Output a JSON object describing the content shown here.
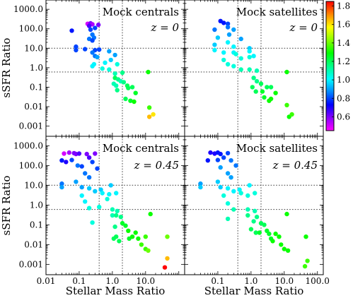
{
  "colors": {
    "colormap": [
      "#ff00ff",
      "#8800ff",
      "#0000ff",
      "#0088ff",
      "#00ffff",
      "#00ff88",
      "#00ff00",
      "#88ff00",
      "#ffff00",
      "#ff8800",
      "#ff0000"
    ],
    "frame": "#000000",
    "guide_lines": "#555555"
  },
  "chart_data": {
    "type": "scatter",
    "xlabel": "Stellar Mass Ratio",
    "ylabel": "sSFR Ratio",
    "x_scale": "log",
    "y_scale": "log",
    "xlim": [
      0.01,
      150
    ],
    "ylim": [
      0.0003,
      3000
    ],
    "x_ticks": [
      "0.01",
      "0.1",
      "1.0",
      "10.0",
      "100.0"
    ],
    "y_ticks": [
      "0.001",
      "0.01",
      "0.1",
      "1.0",
      "10.0",
      "100.0",
      "1000.0"
    ],
    "reference_lines": {
      "x": [
        0.4,
        2.0
      ],
      "y": [
        0.6,
        10.0
      ]
    },
    "colorbar": {
      "range": [
        0.45,
        1.85
      ],
      "ticks": [
        "0.6",
        "0.8",
        "1.0",
        "1.2",
        "1.4",
        "1.6",
        "1.8"
      ]
    },
    "panels": [
      {
        "title": "Mock centrals",
        "redshift": "z = 0",
        "points": [
          [
            0.18,
            180,
            0.5
          ],
          [
            0.22,
            190,
            0.6
          ],
          [
            0.25,
            170,
            0.55
          ],
          [
            0.2,
            140,
            0.65
          ],
          [
            0.38,
            160,
            0.6
          ],
          [
            0.06,
            80,
            0.75
          ],
          [
            0.22,
            90,
            0.8
          ],
          [
            0.3,
            110,
            0.8
          ],
          [
            0.25,
            50,
            0.85
          ],
          [
            0.2,
            30,
            0.85
          ],
          [
            0.28,
            35,
            0.85
          ],
          [
            0.25,
            25,
            0.8
          ],
          [
            0.08,
            12,
            0.8
          ],
          [
            0.08,
            8,
            0.8
          ],
          [
            0.15,
            9,
            0.8
          ],
          [
            0.3,
            8,
            0.8
          ],
          [
            0.4,
            8.5,
            0.8
          ],
          [
            0.25,
            6,
            0.85
          ],
          [
            0.3,
            4,
            0.85
          ],
          [
            0.35,
            3.5,
            0.9
          ],
          [
            0.8,
            7,
            0.9
          ],
          [
            1.2,
            4.5,
            0.9
          ],
          [
            0.9,
            2.5,
            0.95
          ],
          [
            0.28,
            1.5,
            1.0
          ],
          [
            0.25,
            1.2,
            1.0
          ],
          [
            0.6,
            1.8,
            1.0
          ],
          [
            0.5,
            0.9,
            1.05
          ],
          [
            0.8,
            0.8,
            1.05
          ],
          [
            1.4,
            1.5,
            1.05
          ],
          [
            1.2,
            0.5,
            1.1
          ],
          [
            2.0,
            0.55,
            1.15
          ],
          [
            1.2,
            0.3,
            1.2
          ],
          [
            1.5,
            0.25,
            1.15
          ],
          [
            1.8,
            0.2,
            1.1
          ],
          [
            1.1,
            0.15,
            1.1
          ],
          [
            1.3,
            0.12,
            1.1
          ],
          [
            2.2,
            0.18,
            1.15
          ],
          [
            1.4,
            0.07,
            1.15
          ],
          [
            2.8,
            0.12,
            1.2
          ],
          [
            3.0,
            0.09,
            1.2
          ],
          [
            4.0,
            0.1,
            1.2
          ],
          [
            5.0,
            0.05,
            1.25
          ],
          [
            2.5,
            0.025,
            1.2
          ],
          [
            3.5,
            0.02,
            1.25
          ],
          [
            4.5,
            0.018,
            1.3
          ],
          [
            12.0,
            0.6,
            1.3
          ],
          [
            13.0,
            0.009,
            1.35
          ],
          [
            17.0,
            0.004,
            1.6
          ],
          [
            13.0,
            0.003,
            1.65
          ]
        ]
      },
      {
        "title": "Mock satellites",
        "redshift": "z = 0",
        "points": [
          [
            0.12,
            250,
            0.75
          ],
          [
            0.15,
            200,
            0.75
          ],
          [
            0.2,
            180,
            0.8
          ],
          [
            0.2,
            120,
            0.85
          ],
          [
            0.08,
            90,
            0.85
          ],
          [
            0.22,
            50,
            0.9
          ],
          [
            0.3,
            90,
            0.9
          ],
          [
            0.1,
            35,
            0.95
          ],
          [
            0.5,
            30,
            0.9
          ],
          [
            0.08,
            15,
            0.95
          ],
          [
            0.2,
            20,
            1.0
          ],
          [
            0.3,
            12,
            1.0
          ],
          [
            0.08,
            8,
            1.0
          ],
          [
            0.15,
            6,
            1.0
          ],
          [
            0.3,
            6,
            1.0
          ],
          [
            0.35,
            5,
            1.05
          ],
          [
            0.9,
            10,
            0.95
          ],
          [
            0.9,
            7,
            1.0
          ],
          [
            1.2,
            4,
            1.0
          ],
          [
            0.5,
            3,
            1.05
          ],
          [
            0.9,
            3.5,
            1.05
          ],
          [
            0.15,
            2.5,
            1.05
          ],
          [
            0.2,
            1.5,
            1.05
          ],
          [
            0.3,
            1.2,
            1.05
          ],
          [
            0.5,
            0.8,
            1.1
          ],
          [
            0.9,
            0.8,
            1.1
          ],
          [
            1.5,
            0.7,
            1.1
          ],
          [
            1.2,
            0.3,
            1.15
          ],
          [
            1.5,
            0.2,
            1.15
          ],
          [
            2.0,
            0.15,
            1.2
          ],
          [
            1.1,
            0.1,
            1.2
          ],
          [
            3.0,
            0.1,
            1.2
          ],
          [
            1.4,
            0.06,
            1.2
          ],
          [
            2.2,
            0.06,
            1.25
          ],
          [
            4.0,
            0.1,
            1.2
          ],
          [
            2.5,
            0.03,
            1.25
          ],
          [
            3.5,
            0.02,
            1.3
          ],
          [
            4.0,
            0.025,
            1.3
          ],
          [
            5.5,
            0.05,
            1.3
          ],
          [
            12.0,
            0.6,
            1.3
          ],
          [
            12.0,
            0.012,
            1.35
          ],
          [
            14.0,
            0.003,
            1.3
          ],
          [
            17.0,
            0.004,
            1.35
          ]
        ]
      },
      {
        "title": "Mock centrals",
        "redshift": "z = 0.45",
        "points": [
          [
            0.035,
            400,
            0.5
          ],
          [
            0.05,
            450,
            0.55
          ],
          [
            0.07,
            420,
            0.6
          ],
          [
            0.08,
            380,
            0.6
          ],
          [
            0.1,
            400,
            0.65
          ],
          [
            0.17,
            380,
            0.6
          ],
          [
            0.3,
            400,
            0.6
          ],
          [
            0.2,
            250,
            0.65
          ],
          [
            0.03,
            180,
            0.75
          ],
          [
            0.04,
            150,
            0.7
          ],
          [
            0.06,
            190,
            0.8
          ],
          [
            0.09,
            100,
            0.85
          ],
          [
            0.12,
            90,
            0.8
          ],
          [
            0.25,
            150,
            0.8
          ],
          [
            0.35,
            70,
            0.8
          ],
          [
            0.15,
            40,
            0.85
          ],
          [
            0.2,
            25,
            0.85
          ],
          [
            0.03,
            12,
            0.85
          ],
          [
            0.03,
            8,
            0.9
          ],
          [
            0.08,
            15,
            0.9
          ],
          [
            0.12,
            8,
            0.9
          ],
          [
            0.2,
            7,
            0.95
          ],
          [
            0.3,
            5,
            0.95
          ],
          [
            0.45,
            6,
            0.95
          ],
          [
            0.5,
            4,
            1.0
          ],
          [
            0.12,
            3,
            1.0
          ],
          [
            0.15,
            1.5,
            1.0
          ],
          [
            0.2,
            0.7,
            1.05
          ],
          [
            0.9,
            10,
            0.95
          ],
          [
            0.8,
            3.5,
            1.0
          ],
          [
            1.3,
            4,
            1.0
          ],
          [
            0.7,
            2,
            1.05
          ],
          [
            0.4,
            0.8,
            1.05
          ],
          [
            1.0,
            0.6,
            1.1
          ],
          [
            1.4,
            0.5,
            1.1
          ],
          [
            0.25,
            0.13,
            1.05
          ],
          [
            1.0,
            0.3,
            1.1
          ],
          [
            1.3,
            0.3,
            1.15
          ],
          [
            1.8,
            0.25,
            1.15
          ],
          [
            1.2,
            0.08,
            1.15
          ],
          [
            1.1,
            0.02,
            1.2
          ],
          [
            1.3,
            0.025,
            1.2
          ],
          [
            1.6,
            0.015,
            1.2
          ],
          [
            2.0,
            0.12,
            1.25
          ],
          [
            2.5,
            0.09,
            1.25
          ],
          [
            3.0,
            0.05,
            1.3
          ],
          [
            3.2,
            0.02,
            1.25
          ],
          [
            4.0,
            0.025,
            1.3
          ],
          [
            5.0,
            0.04,
            1.3
          ],
          [
            6.0,
            0.02,
            1.3
          ],
          [
            7.5,
            0.01,
            1.35
          ],
          [
            10.0,
            0.025,
            1.35
          ],
          [
            10.0,
            0.006,
            1.35
          ],
          [
            12.0,
            0.005,
            1.4
          ],
          [
            14.0,
            0.35,
            1.3
          ],
          [
            45.0,
            0.025,
            1.4
          ],
          [
            45.0,
            0.002,
            1.65
          ],
          [
            38.0,
            0.0007,
            1.85
          ]
        ]
      },
      {
        "title": "Mock satellites",
        "redshift": "z = 0.45",
        "points": [
          [
            0.06,
            450,
            0.7
          ],
          [
            0.08,
            400,
            0.7
          ],
          [
            0.1,
            450,
            0.75
          ],
          [
            0.12,
            380,
            0.75
          ],
          [
            0.2,
            420,
            0.8
          ],
          [
            0.05,
            180,
            0.75
          ],
          [
            0.1,
            190,
            0.8
          ],
          [
            0.15,
            250,
            0.8
          ],
          [
            0.25,
            180,
            0.85
          ],
          [
            0.35,
            100,
            0.85
          ],
          [
            0.12,
            80,
            0.9
          ],
          [
            0.2,
            40,
            0.9
          ],
          [
            0.25,
            25,
            0.9
          ],
          [
            0.03,
            12,
            0.9
          ],
          [
            0.03,
            8,
            0.95
          ],
          [
            0.1,
            15,
            0.95
          ],
          [
            0.12,
            8,
            0.95
          ],
          [
            0.2,
            7,
            1.0
          ],
          [
            0.3,
            5,
            1.0
          ],
          [
            0.45,
            6,
            1.0
          ],
          [
            0.5,
            4,
            1.05
          ],
          [
            0.15,
            3,
            1.05
          ],
          [
            0.2,
            1.2,
            1.05
          ],
          [
            0.3,
            0.6,
            1.1
          ],
          [
            0.9,
            10,
            1.0
          ],
          [
            0.8,
            3,
            1.05
          ],
          [
            1.3,
            4,
            1.05
          ],
          [
            0.8,
            0.6,
            1.1
          ],
          [
            1.3,
            0.5,
            1.1
          ],
          [
            0.2,
            0.2,
            1.1
          ],
          [
            0.8,
            0.3,
            1.15
          ],
          [
            1.2,
            0.15,
            1.15
          ],
          [
            1.5,
            0.25,
            1.15
          ],
          [
            2.0,
            0.12,
            1.2
          ],
          [
            2.5,
            0.1,
            1.2
          ],
          [
            1.0,
            0.06,
            1.2
          ],
          [
            1.4,
            0.04,
            1.2
          ],
          [
            1.8,
            0.04,
            1.25
          ],
          [
            3.0,
            0.05,
            1.25
          ],
          [
            3.5,
            0.035,
            1.25
          ],
          [
            4.0,
            0.02,
            1.25
          ],
          [
            4.5,
            0.015,
            1.3
          ],
          [
            5.5,
            0.035,
            1.3
          ],
          [
            7.0,
            0.025,
            1.3
          ],
          [
            8.0,
            0.01,
            1.3
          ],
          [
            10.0,
            0.006,
            1.3
          ],
          [
            13.0,
            0.005,
            1.3
          ],
          [
            12.0,
            0.35,
            1.3
          ],
          [
            45.0,
            0.025,
            1.3
          ],
          [
            50.0,
            0.0015,
            1.35
          ],
          [
            42.0,
            0.0008,
            1.35
          ]
        ]
      }
    ]
  }
}
